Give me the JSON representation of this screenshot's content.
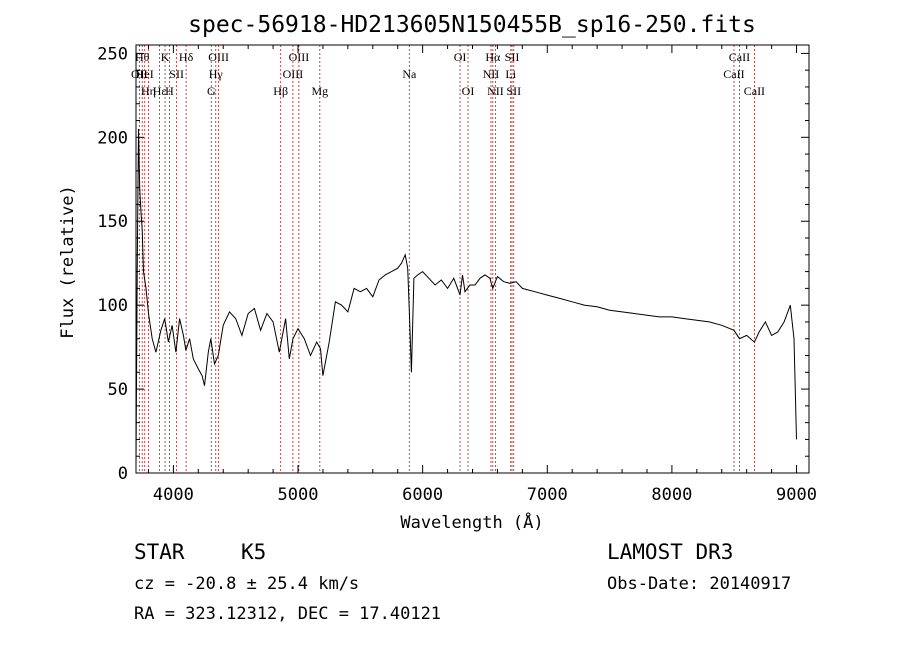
{
  "chart_data": {
    "type": "line",
    "title": "spec-56918-HD213605N150455B_sp16-250.fits",
    "xlabel": "Wavelength (Å)",
    "ylabel": "Flux (relative)",
    "xlim": [
      3700,
      9100
    ],
    "ylim": [
      0,
      255
    ],
    "x_ticks": [
      4000,
      5000,
      6000,
      7000,
      8000,
      9000
    ],
    "y_ticks": [
      0,
      50,
      100,
      150,
      200,
      250
    ],
    "grid": false,
    "line_color": "#000000",
    "marker_color": "#aa2222",
    "series": [
      {
        "x": [
          3700,
          3710,
          3720,
          3730,
          3740,
          3750,
          3760,
          3780,
          3800,
          3830,
          3860,
          3900,
          3930,
          3960,
          3990,
          4020,
          4050,
          4080,
          4100,
          4130,
          4160,
          4200,
          4230,
          4250,
          4280,
          4300,
          4330,
          4360,
          4400,
          4450,
          4500,
          4550,
          4600,
          4650,
          4700,
          4750,
          4800,
          4850,
          4880,
          4900,
          4930,
          4960,
          5000,
          5050,
          5100,
          5150,
          5180,
          5200,
          5250,
          5300,
          5350,
          5400,
          5450,
          5500,
          5550,
          5600,
          5650,
          5700,
          5750,
          5800,
          5830,
          5860,
          5880,
          5895,
          5910,
          5930,
          5960,
          6000,
          6050,
          6100,
          6150,
          6200,
          6250,
          6290,
          6300,
          6320,
          6340,
          6380,
          6420,
          6460,
          6500,
          6540,
          6563,
          6600,
          6650,
          6700,
          6750,
          6800,
          6900,
          7000,
          7100,
          7200,
          7300,
          7400,
          7500,
          7600,
          7700,
          7800,
          7900,
          8000,
          8100,
          8200,
          8300,
          8400,
          8498,
          8542,
          8600,
          8662,
          8700,
          8750,
          8800,
          8850,
          8900,
          8950,
          8980,
          9000
        ],
        "values": [
          5,
          120,
          205,
          170,
          155,
          145,
          120,
          110,
          95,
          80,
          72,
          85,
          92,
          78,
          88,
          72,
          92,
          82,
          73,
          80,
          68,
          62,
          58,
          52,
          72,
          80,
          65,
          70,
          88,
          96,
          92,
          82,
          95,
          98,
          85,
          95,
          90,
          72,
          84,
          92,
          68,
          80,
          86,
          80,
          70,
          78,
          74,
          58,
          78,
          102,
          100,
          96,
          110,
          108,
          110,
          105,
          115,
          118,
          120,
          122,
          125,
          130,
          122,
          92,
          60,
          116,
          118,
          120,
          116,
          112,
          115,
          110,
          116,
          108,
          106,
          118,
          108,
          112,
          112,
          116,
          118,
          116,
          110,
          117,
          114,
          113,
          114,
          110,
          108,
          106,
          104,
          102,
          100,
          99,
          97,
          96,
          95,
          94,
          93,
          93,
          92,
          91,
          90,
          88,
          85,
          80,
          82,
          78,
          84,
          90,
          82,
          84,
          90,
          100,
          80,
          20
        ]
      }
    ],
    "line_markers": [
      {
        "x": 3727,
        "label": "OII",
        "row": 1
      },
      {
        "x": 3750,
        "label": "Hθ",
        "row": 0
      },
      {
        "x": 3770,
        "label": "HeI",
        "row": 1
      },
      {
        "x": 3800,
        "label": "Hη",
        "row": 2
      },
      {
        "x": 3889,
        "label": "Hε",
        "row": 2
      },
      {
        "x": 3933,
        "label": "K",
        "row": 0
      },
      {
        "x": 3968,
        "label": "H",
        "row": 2
      },
      {
        "x": 4026,
        "label": "SII",
        "row": 1
      },
      {
        "x": 4102,
        "label": "Hδ",
        "row": 0
      },
      {
        "x": 4304,
        "label": "G",
        "row": 2
      },
      {
        "x": 4340,
        "label": "Hγ",
        "row": 1
      },
      {
        "x": 4363,
        "label": "OIII",
        "row": 0
      },
      {
        "x": 4861,
        "label": "Hβ",
        "row": 2
      },
      {
        "x": 4959,
        "label": "OIII",
        "row": 1
      },
      {
        "x": 5007,
        "label": "OIII",
        "row": 0
      },
      {
        "x": 5175,
        "label": "Mg",
        "row": 2
      },
      {
        "x": 5893,
        "label": "Na",
        "row": 1
      },
      {
        "x": 6300,
        "label": "OI",
        "row": 0
      },
      {
        "x": 6364,
        "label": "OI",
        "row": 2
      },
      {
        "x": 6548,
        "label": "NII",
        "row": 1
      },
      {
        "x": 6563,
        "label": "Hα",
        "row": 0
      },
      {
        "x": 6584,
        "label": "NII",
        "row": 2
      },
      {
        "x": 6707,
        "label": "Li",
        "row": 1
      },
      {
        "x": 6717,
        "label": "SII",
        "row": 0
      },
      {
        "x": 6731,
        "label": "SII",
        "row": 2
      },
      {
        "x": 8498,
        "label": "CaII",
        "row": 1
      },
      {
        "x": 8542,
        "label": "CaII",
        "row": 0
      },
      {
        "x": 8662,
        "label": "CaII",
        "row": 2
      }
    ]
  },
  "info": {
    "object_class": "STAR",
    "subclass": "K5",
    "survey": "LAMOST DR3",
    "cz": "cz = -20.8 ± 25.4 km/s",
    "obs_date": "Obs-Date: 20140917",
    "coords": "RA = 323.12312, DEC =  17.40121"
  }
}
